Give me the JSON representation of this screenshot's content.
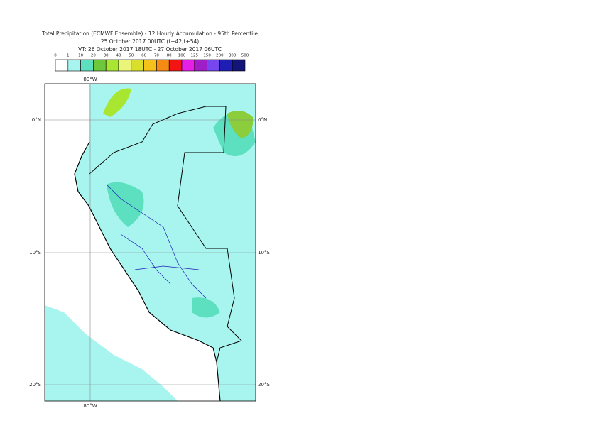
{
  "header": {
    "title": "Total Precipitation (ECMWF Ensemble) - 12 Hourly Accumulation - 95th Percentile",
    "base_time": "25 October 2017 00UTC (t+42,t+54)",
    "valid_time": "VT: 26 October 2017 18UTC - 27 October 2017 06UTC"
  },
  "legend": {
    "thresholds": [
      0,
      1,
      10,
      20,
      30,
      40,
      50,
      60,
      70,
      80,
      100,
      125,
      150,
      200,
      300,
      500
    ],
    "colors": [
      "#ffffff",
      "#a8f5f0",
      "#5de0c0",
      "#6ec83c",
      "#a8e632",
      "#eaf57a",
      "#d8e02c",
      "#f5c21b",
      "#f58a14",
      "#f51414",
      "#e61ee6",
      "#a01ec8",
      "#7846f0",
      "#1e1eb4",
      "#141478"
    ]
  },
  "map": {
    "lon_labels": [
      "80°W"
    ],
    "lat_labels": [
      "0°N",
      "10°S",
      "20°S"
    ]
  }
}
